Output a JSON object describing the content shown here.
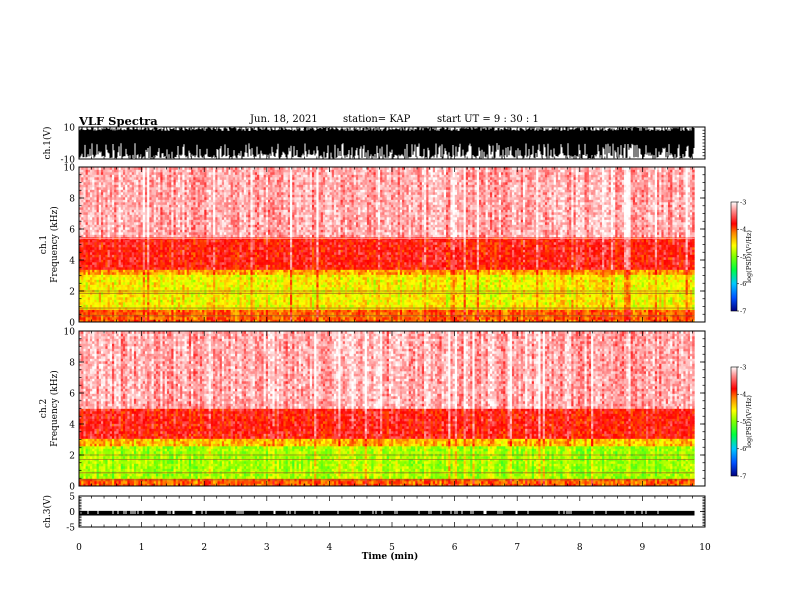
{
  "header": {
    "title": "VLF Spectra",
    "date": "Jun. 18, 2021",
    "station": "station= KAP",
    "start": "start  UT =   9 : 30 : 1"
  },
  "colors": {
    "spectrogram_scale": [
      "#0000c8",
      "#0080ff",
      "#00e080",
      "#30ff00",
      "#c8ff00",
      "#ffff00",
      "#ff8000",
      "#ff0000",
      "#ffb0b0",
      "#ffffff"
    ]
  },
  "chart_data": [
    {
      "type": "line",
      "panel": "ch1-waveform",
      "ylabel": "ch.1(V)",
      "ylim": [
        -10,
        10
      ],
      "yticks": [
        "10",
        "-10"
      ],
      "xlim": [
        0,
        10
      ],
      "description_values": {
        "approx_amplitude_V": 10,
        "min_V": -10,
        "max_V": 10
      },
      "grid": false
    },
    {
      "type": "heatmap",
      "panel": "ch1-spectrogram",
      "ylabel": "ch.1\nFrequency (kHz)",
      "ylim": [
        0,
        10
      ],
      "yticks": [
        "0",
        "2",
        "4",
        "6",
        "8",
        "10"
      ],
      "xlim": [
        0,
        9.83
      ],
      "colorbar": {
        "label": "log(PSD)(V²/Hz)",
        "range": [
          -7,
          -3
        ],
        "ticks": [
          "-3",
          "-4",
          "-5",
          "-6",
          "-7"
        ]
      },
      "bands": [
        {
          "freq_kHz": [
            0,
            0.8
          ],
          "logPSD": -4.1
        },
        {
          "freq_kHz": [
            0.8,
            3.0
          ],
          "logPSD": -4.6
        },
        {
          "freq_kHz": [
            3.0,
            3.4
          ],
          "logPSD": -4.3
        },
        {
          "freq_kHz": [
            3.4,
            5.5
          ],
          "logPSD": -3.8
        },
        {
          "freq_kHz": [
            5.5,
            10
          ],
          "logPSD": -3.3
        }
      ],
      "lines_kHz": [
        0.4,
        0.9,
        1.85,
        2.0,
        5.4
      ]
    },
    {
      "type": "heatmap",
      "panel": "ch2-spectrogram",
      "ylabel": "ch.2\nFrequency (kHz)",
      "ylim": [
        0,
        10
      ],
      "yticks": [
        "0",
        "2",
        "4",
        "6",
        "8",
        "10"
      ],
      "xlim": [
        0,
        9.83
      ],
      "colorbar": {
        "label": "log(PSD)(V²/Hz)",
        "range": [
          -7,
          -3
        ],
        "ticks": [
          "-3",
          "-4",
          "-5",
          "-6",
          "-7"
        ]
      },
      "bands": [
        {
          "freq_kHz": [
            0,
            0.5
          ],
          "logPSD": -4.1
        },
        {
          "freq_kHz": [
            0.5,
            2.6
          ],
          "logPSD": -4.9
        },
        {
          "freq_kHz": [
            2.6,
            3.0
          ],
          "logPSD": -4.4
        },
        {
          "freq_kHz": [
            3.0,
            5.0
          ],
          "logPSD": -3.8
        },
        {
          "freq_kHz": [
            5.0,
            10
          ],
          "logPSD": -3.3
        }
      ],
      "lines_kHz": [
        0.4,
        0.85,
        1.7,
        2.0
      ]
    },
    {
      "type": "line",
      "panel": "ch3-waveform",
      "ylabel": "ch.3(V)",
      "ylim": [
        -5,
        5
      ],
      "yticks": [
        "5",
        "0",
        "-5"
      ],
      "xlim": [
        0,
        10
      ],
      "description_values": {
        "baseline_V": -0.8,
        "pulse_V": 0.2
      },
      "xlabel": "Time  (min)",
      "xticks": [
        "0",
        "1",
        "2",
        "3",
        "4",
        "5",
        "6",
        "7",
        "8",
        "9",
        "10"
      ]
    }
  ]
}
